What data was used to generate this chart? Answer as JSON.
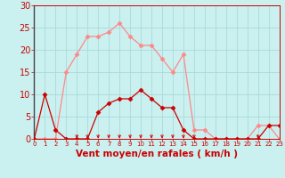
{
  "title": "",
  "xlabel": "Vent moyen/en rafales ( km/h )",
  "background_color": "#caf0f0",
  "grid_color": "#aadada",
  "hours": [
    0,
    1,
    2,
    3,
    4,
    5,
    6,
    7,
    8,
    9,
    10,
    11,
    12,
    13,
    14,
    15,
    16,
    17,
    18,
    19,
    20,
    21,
    22,
    23
  ],
  "wind_avg": [
    0,
    10,
    2,
    0,
    0,
    0,
    6,
    8,
    9,
    9,
    11,
    9,
    7,
    7,
    2,
    0,
    0,
    0,
    0,
    0,
    0,
    0,
    3,
    3
  ],
  "wind_gust": [
    0,
    0,
    0,
    15,
    19,
    23,
    23,
    24,
    26,
    23,
    21,
    21,
    18,
    15,
    19,
    2,
    2,
    0,
    0,
    0,
    0,
    3,
    3,
    0
  ],
  "line_color_avg": "#cc0000",
  "line_color_gust": "#ff8888",
  "marker_size": 2.5,
  "marker_style": "D",
  "ylim": [
    0,
    30
  ],
  "yticks": [
    0,
    5,
    10,
    15,
    20,
    25,
    30
  ],
  "xlim": [
    0,
    23
  ],
  "arrow_hours": [
    4,
    5,
    6,
    7,
    8,
    9,
    10,
    11,
    12,
    13,
    14,
    15,
    21
  ],
  "arrow_color": "#cc0000",
  "axis_color": "#cc0000",
  "tick_label_color": "#cc0000",
  "xlabel_color": "#cc0000",
  "xlabel_fontsize": 7.5,
  "ytick_fontsize": 7,
  "xtick_fontsize": 5
}
